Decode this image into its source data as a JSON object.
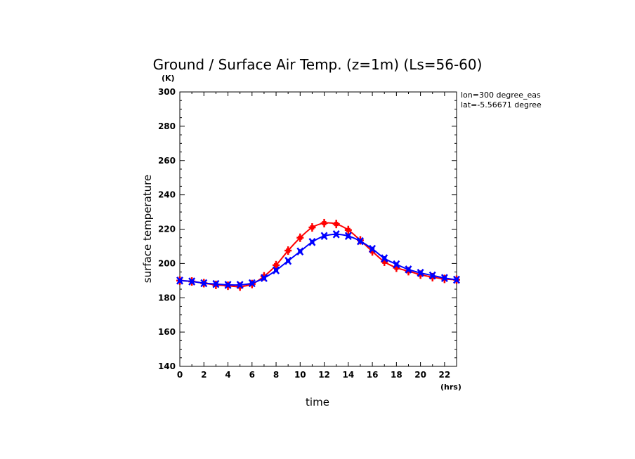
{
  "title": "Ground / Surface Air Temp. (z=1m) (Ls=56-60)",
  "y_unit": "(K)",
  "x_unit": "(hrs)",
  "info": {
    "lon": "lon=300 degree_eas",
    "lat": "lat=-5.56671 degree"
  },
  "colors": {
    "series_ground": "#ff0000",
    "series_air": "#0000ff",
    "axes": "#000000"
  },
  "chart_data": {
    "type": "line",
    "xlabel": "time",
    "ylabel": "surface temperature",
    "xlim": [
      0,
      23
    ],
    "ylim": [
      140,
      300
    ],
    "x_ticks": [
      0,
      2,
      4,
      6,
      8,
      10,
      12,
      14,
      16,
      18,
      20,
      22
    ],
    "y_ticks": [
      140,
      160,
      180,
      200,
      220,
      240,
      260,
      280,
      300
    ],
    "grid": false,
    "x": [
      0,
      1,
      2,
      3,
      4,
      5,
      6,
      7,
      8,
      9,
      10,
      11,
      12,
      13,
      14,
      15,
      16,
      17,
      18,
      19,
      20,
      21,
      22,
      23
    ],
    "series": [
      {
        "marker": "plus",
        "color": "#ff0000",
        "values": [
          190,
          189.5,
          188.5,
          187.5,
          187,
          186.5,
          188,
          192.5,
          199,
          207.5,
          215,
          221,
          223.5,
          223,
          219.5,
          213.5,
          207,
          201,
          197.5,
          195.5,
          193.5,
          192,
          191,
          190.5
        ]
      },
      {
        "marker": "x",
        "color": "#0000ff",
        "values": [
          190,
          189.5,
          188.5,
          188,
          187.5,
          187.5,
          188.5,
          191.5,
          196,
          201.5,
          207,
          212.5,
          216,
          217,
          216,
          213,
          208.5,
          203,
          199.5,
          196.5,
          194.5,
          193,
          191.5,
          190.5
        ]
      }
    ]
  }
}
